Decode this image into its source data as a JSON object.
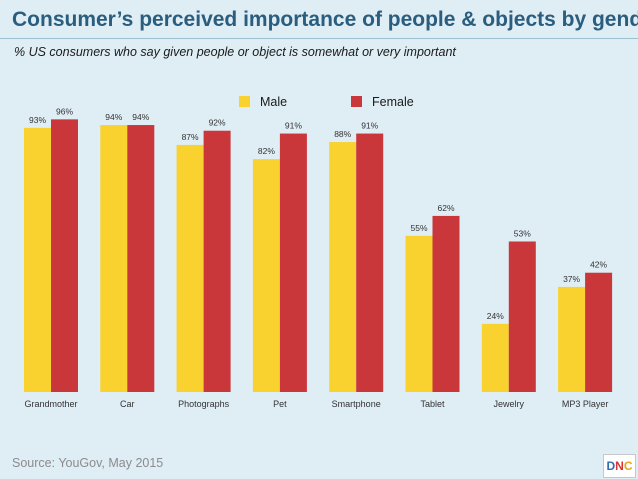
{
  "title": "Consumer’s perceived importance of people & objects by gender",
  "subtitle": "% US consumers who say given people or object is somewhat or very important",
  "source": "Source: YouGov, May 2015",
  "logo": {
    "d": "D",
    "n": "N",
    "c": "C"
  },
  "colors": {
    "male": "#f9d22f",
    "female": "#c9373a",
    "background": "#dfedf4"
  },
  "chart_data": {
    "type": "bar",
    "categories": [
      "Grandmother",
      "Car",
      "Photographs",
      "Pet",
      "Smartphone",
      "Tablet",
      "Jewelry",
      "MP3 Player"
    ],
    "series": [
      {
        "name": "Male",
        "values": [
          93,
          94,
          87,
          82,
          88,
          55,
          24,
          37
        ],
        "labels": [
          "93%",
          "94%",
          "87%",
          "82%",
          "88%",
          "55%",
          "24%",
          "37%"
        ]
      },
      {
        "name": "Female",
        "values": [
          96,
          94,
          92,
          91,
          91,
          62,
          53,
          42
        ],
        "labels": [
          "96%",
          "94%",
          "92%",
          "91%",
          "91%",
          "62%",
          "53%",
          "42%"
        ]
      }
    ],
    "ylim": [
      0,
      100
    ],
    "legend": "top-center",
    "grid": false
  }
}
